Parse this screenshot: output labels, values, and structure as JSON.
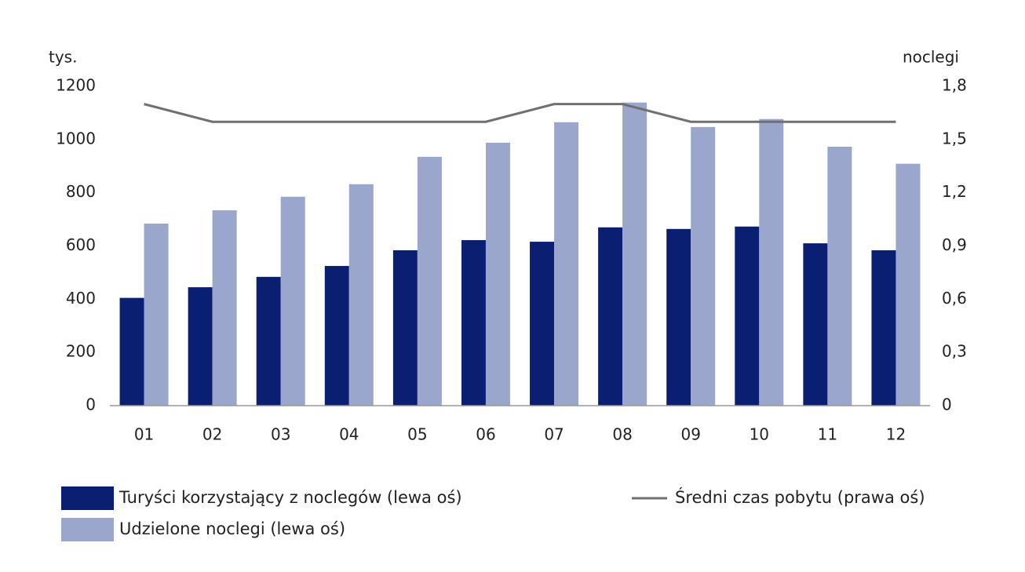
{
  "chart_data": {
    "type": "bar",
    "y_label": "tys.",
    "y2_label": "noclegi",
    "categories": [
      "01",
      "02",
      "03",
      "04",
      "05",
      "06",
      "07",
      "08",
      "09",
      "10",
      "11",
      "12"
    ],
    "series": [
      {
        "name": "Turyści korzystający z noclegów (lewa oś)",
        "color": "#0b1f72",
        "values": [
          405,
          445,
          484,
          525,
          584,
          622,
          616,
          670,
          664,
          673,
          610,
          584
        ]
      },
      {
        "name": "Udzielone noclegi (lewa oś)",
        "color": "#9aa6cc",
        "values": [
          684,
          734,
          785,
          832,
          935,
          988,
          1065,
          1139,
          1047,
          1077,
          973,
          909
        ]
      },
      {
        "name": "Średni czas pobytu (prawa oś)",
        "color": "#707070",
        "type": "line",
        "axis": "y2",
        "values": [
          1.7,
          1.6,
          1.6,
          1.6,
          1.6,
          1.6,
          1.7,
          1.7,
          1.6,
          1.6,
          1.6,
          1.6
        ]
      }
    ],
    "ylim": [
      0,
      1200
    ],
    "yticks": [
      0,
      200,
      400,
      600,
      800,
      1000,
      1200
    ],
    "y2lim": [
      0,
      1.8
    ],
    "y2ticks": [
      0,
      {
        "value": 0.3,
        "label": "0,3"
      },
      {
        "value": 0.6,
        "label": "0,6"
      },
      {
        "value": 0.9,
        "label": "0,9"
      },
      {
        "value": 1.2,
        "label": "1,2"
      },
      {
        "value": 1.5,
        "label": "1,5"
      },
      {
        "value": 1.8,
        "label": "1,8"
      }
    ],
    "grid": false
  }
}
